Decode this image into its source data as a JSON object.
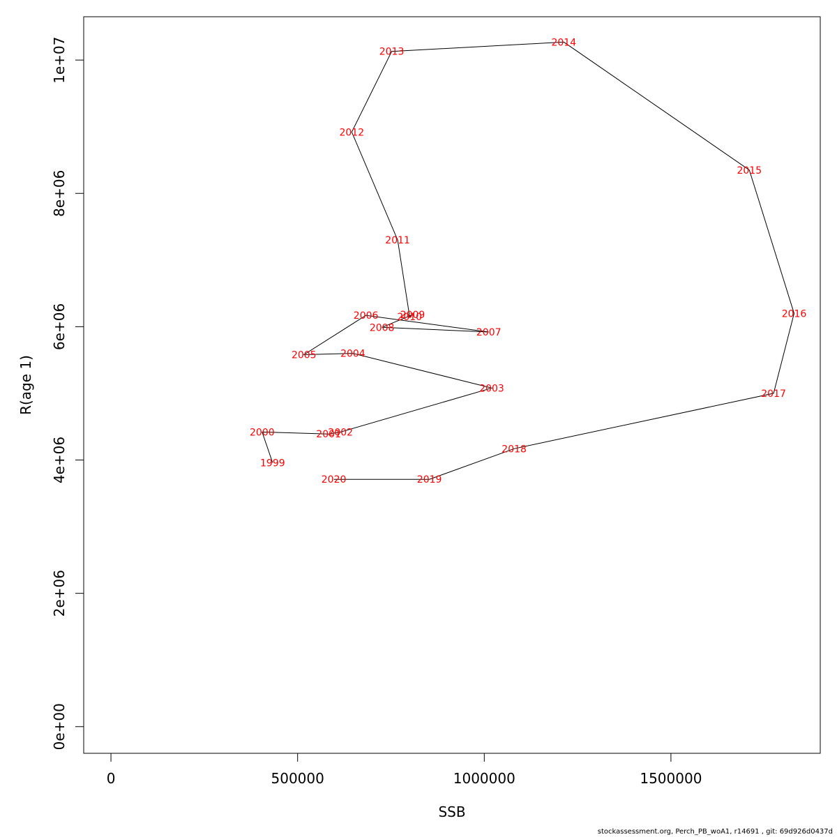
{
  "chart_data": {
    "type": "line",
    "xlabel": "SSB",
    "ylabel": "R(age 1)",
    "xlim": [
      -73000,
      1900000
    ],
    "ylim": [
      -400000,
      10650000
    ],
    "x_ticks": [
      0,
      500000,
      1000000,
      1500000
    ],
    "x_tick_labels": [
      "0",
      "500000",
      "1000000",
      "1500000"
    ],
    "y_ticks": [
      0,
      2000000,
      4000000,
      6000000,
      8000000,
      10000000
    ],
    "y_tick_labels": [
      "0e+00",
      "2e+06",
      "4e+06",
      "6e+06",
      "8e+06",
      "1e+07"
    ],
    "grid": false,
    "line_color": "#000000",
    "label_color": "#ff0000",
    "points": [
      {
        "label": "1999",
        "x": 433000,
        "y": 3960000
      },
      {
        "label": "2000",
        "x": 405000,
        "y": 4420000
      },
      {
        "label": "2001",
        "x": 583000,
        "y": 4390000
      },
      {
        "label": "2002",
        "x": 615000,
        "y": 4420000
      },
      {
        "label": "2003",
        "x": 1020000,
        "y": 5080000
      },
      {
        "label": "2004",
        "x": 648000,
        "y": 5600000
      },
      {
        "label": "2005",
        "x": 517000,
        "y": 5580000
      },
      {
        "label": "2006",
        "x": 683000,
        "y": 6170000
      },
      {
        "label": "2007",
        "x": 1012000,
        "y": 5920000
      },
      {
        "label": "2008",
        "x": 726000,
        "y": 5990000
      },
      {
        "label": "2009",
        "x": 808000,
        "y": 6180000
      },
      {
        "label": "2010",
        "x": 800000,
        "y": 6150000
      },
      {
        "label": "2011",
        "x": 768000,
        "y": 7300000
      },
      {
        "label": "2012",
        "x": 645000,
        "y": 8920000
      },
      {
        "label": "2013",
        "x": 752000,
        "y": 10130000
      },
      {
        "label": "2014",
        "x": 1213000,
        "y": 10270000
      },
      {
        "label": "2015",
        "x": 1710000,
        "y": 8350000
      },
      {
        "label": "2016",
        "x": 1830000,
        "y": 6200000
      },
      {
        "label": "2017",
        "x": 1775000,
        "y": 5000000
      },
      {
        "label": "2018",
        "x": 1080000,
        "y": 4170000
      },
      {
        "label": "2019",
        "x": 853000,
        "y": 3710000
      },
      {
        "label": "2020",
        "x": 597000,
        "y": 3710000
      }
    ]
  },
  "footer": {
    "text": "stockassessment.org, Perch_PB_woA1, r14691 , git: 69d926d0437d"
  }
}
